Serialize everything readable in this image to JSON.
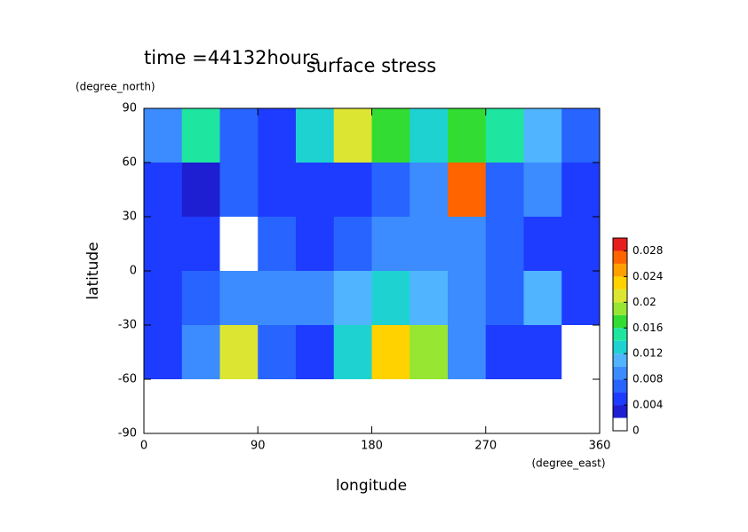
{
  "chart_data": {
    "type": "contour",
    "title": "surface stress",
    "subtitle": "time =44132hours",
    "x_label": "longitude",
    "x_unit": "(degree_east)",
    "y_label": "latitude",
    "y_unit": "(degree_north)",
    "x": [
      15,
      45,
      75,
      105,
      135,
      165,
      195,
      225,
      255,
      285,
      315,
      345
    ],
    "y": [
      75,
      45,
      15,
      -15,
      -45,
      -75
    ],
    "z": [
      [
        0.008,
        0.014,
        0.006,
        0.004,
        0.012,
        0.02,
        0.016,
        0.012,
        0.016,
        0.014,
        0.01,
        0.006
      ],
      [
        0.004,
        0.002,
        0.006,
        0.004,
        0.004,
        0.004,
        0.006,
        0.008,
        0.026,
        0.006,
        0.008,
        0.004
      ],
      [
        0.004,
        0.004,
        0,
        0.006,
        0.004,
        0.006,
        0.008,
        0.008,
        0.008,
        0.006,
        0.004,
        0.004
      ],
      [
        0.004,
        0.006,
        0.008,
        0.008,
        0.008,
        0.01,
        0.012,
        0.01,
        0.008,
        0.006,
        0.01,
        0.004
      ],
      [
        0.004,
        0.008,
        0.02,
        0.006,
        0.004,
        0.012,
        0.022,
        0.018,
        0.008,
        0.004,
        0.004,
        0
      ],
      [
        0,
        0,
        0,
        0,
        0,
        0,
        0,
        0,
        0,
        0,
        0,
        0
      ]
    ],
    "xlim": [
      0,
      360
    ],
    "xticks": [
      0,
      90,
      180,
      270,
      360
    ],
    "ylim": [
      -90,
      90
    ],
    "yticks": [
      -90,
      -60,
      -30,
      0,
      30,
      60,
      90
    ],
    "levels": [
      0,
      0.002,
      0.004,
      0.006,
      0.008,
      0.01,
      0.012,
      0.014,
      0.016,
      0.018,
      0.02,
      0.022,
      0.024,
      0.026,
      0.028,
      0.03
    ],
    "colors": [
      "#ffffff",
      "#1e1ed2",
      "#1e3cff",
      "#2864ff",
      "#3c8cff",
      "#50b4ff",
      "#1ed2d2",
      "#1ee6a0",
      "#32dc32",
      "#96e632",
      "#dce632",
      "#ffd200",
      "#ffa000",
      "#ff6400",
      "#e61e1e"
    ],
    "colorbar_lim": [
      0,
      0.03
    ],
    "colorbar_ticks": [
      0,
      0.004,
      0.008,
      0.012,
      0.016,
      0.02,
      0.024,
      0.028
    ]
  }
}
